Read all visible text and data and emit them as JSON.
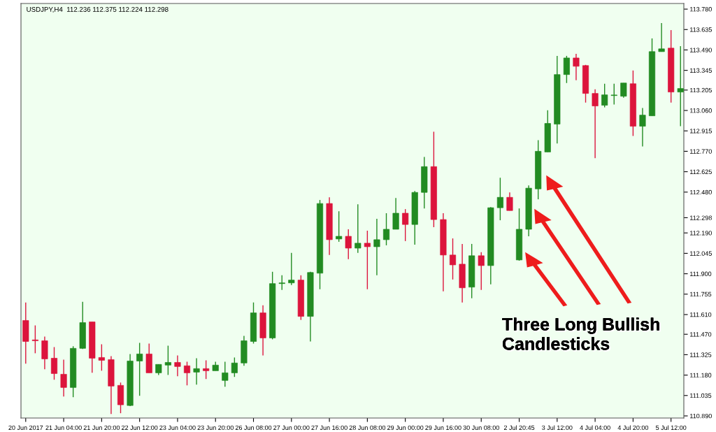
{
  "chart_data": {
    "type": "candlestick",
    "title": "USDJPY,H4  112.236 112.375 112.224 112.298",
    "categories": [
      "20 Jun 2017",
      null,
      null,
      null,
      "21 Jun 04:00",
      null,
      null,
      null,
      "21 Jun 20:00",
      null,
      null,
      null,
      "22 Jun 12:00",
      null,
      null,
      null,
      "23 Jun 04:00",
      null,
      null,
      null,
      "23 Jun 20:00",
      null,
      null,
      null,
      "26 Jun 08:00",
      null,
      null,
      null,
      "27 Jun 00:00",
      null,
      null,
      null,
      "27 Jun 16:00",
      null,
      null,
      null,
      "28 Jun 08:00",
      null,
      null,
      null,
      "29 Jun 00:00",
      null,
      null,
      null,
      "29 Jun 16:00",
      null,
      null,
      null,
      "30 Jun 08:00",
      null,
      null,
      null,
      "2 Jul 20:45",
      null,
      null,
      null,
      "3 Jul 12:00",
      null,
      null,
      null,
      "4 Jul 04:00",
      null,
      null,
      null,
      "4 Jul 20:00",
      null,
      null,
      null,
      "5 Jul 12:00",
      null
    ],
    "ohlc": [
      [
        111.568,
        111.696,
        111.261,
        111.419
      ],
      [
        111.43,
        111.533,
        111.335,
        111.424
      ],
      [
        111.424,
        111.454,
        111.221,
        111.295
      ],
      [
        111.3,
        111.379,
        111.147,
        111.191
      ],
      [
        111.186,
        111.29,
        111.028,
        111.092
      ],
      [
        111.092,
        111.385,
        111.023,
        111.37
      ],
      [
        111.37,
        111.701,
        111.365,
        111.553
      ],
      [
        111.558,
        111.558,
        111.196,
        111.3
      ],
      [
        111.305,
        111.399,
        111.211,
        111.285
      ],
      [
        111.29,
        111.315,
        110.904,
        111.102
      ],
      [
        111.107,
        111.127,
        110.909,
        110.969
      ],
      [
        110.964,
        111.33,
        110.959,
        111.28
      ],
      [
        111.28,
        111.409,
        111.033,
        111.33
      ],
      [
        111.33,
        111.404,
        111.196,
        111.196
      ],
      [
        111.196,
        111.256,
        111.181,
        111.256
      ],
      [
        111.251,
        111.389,
        111.181,
        111.27
      ],
      [
        111.27,
        111.32,
        111.172,
        111.241
      ],
      [
        111.246,
        111.275,
        111.107,
        111.196
      ],
      [
        111.201,
        111.3,
        111.112,
        111.226
      ],
      [
        111.226,
        111.285,
        111.152,
        111.211
      ],
      [
        111.211,
        111.275,
        111.211,
        111.251
      ],
      [
        111.142,
        111.275,
        111.097,
        111.196
      ],
      [
        111.196,
        111.305,
        111.167,
        111.266
      ],
      [
        111.266,
        111.459,
        111.246,
        111.424
      ],
      [
        111.419,
        111.696,
        111.404,
        111.622
      ],
      [
        111.622,
        111.676,
        111.32,
        111.444
      ],
      [
        111.444,
        111.914,
        111.434,
        111.83
      ],
      [
        111.83,
        111.889,
        111.785,
        111.835
      ],
      [
        111.835,
        112.048,
        111.82,
        111.855
      ],
      [
        111.855,
        111.889,
        111.572,
        111.597
      ],
      [
        111.597,
        111.914,
        111.419,
        111.909
      ],
      [
        111.904,
        112.424,
        111.79,
        112.399
      ],
      [
        112.399,
        112.443,
        112.033,
        112.142
      ],
      [
        112.147,
        112.344,
        112.127,
        112.166
      ],
      [
        112.166,
        112.216,
        112.003,
        112.082
      ],
      [
        112.082,
        112.394,
        112.048,
        112.117
      ],
      [
        112.117,
        112.206,
        111.79,
        112.092
      ],
      [
        112.092,
        112.29,
        111.889,
        112.142
      ],
      [
        112.142,
        112.33,
        112.102,
        112.216
      ],
      [
        112.216,
        112.438,
        112.216,
        112.33
      ],
      [
        112.33,
        112.359,
        112.132,
        112.25
      ],
      [
        112.25,
        112.488,
        112.107,
        112.478
      ],
      [
        112.478,
        112.73,
        112.364,
        112.661
      ],
      [
        112.661,
        112.909,
        112.231,
        112.285
      ],
      [
        112.285,
        112.33,
        111.775,
        112.033
      ],
      [
        112.033,
        112.151,
        111.859,
        111.963
      ],
      [
        111.968,
        112.112,
        111.696,
        111.8
      ],
      [
        111.805,
        112.112,
        111.726,
        112.028
      ],
      [
        112.028,
        112.053,
        111.785,
        111.958
      ],
      [
        111.958,
        112.374,
        111.825,
        112.369
      ],
      [
        112.369,
        112.582,
        112.28,
        112.443
      ],
      [
        112.443,
        112.478,
        112.349,
        112.349
      ],
      [
        111.998,
        112.364,
        111.993,
        112.216
      ],
      [
        112.216,
        112.528,
        112.166,
        112.508
      ],
      [
        112.503,
        112.849,
        112.429,
        112.77
      ],
      [
        112.765,
        113.062,
        112.765,
        112.968
      ],
      [
        112.963,
        113.448,
        112.825,
        113.315
      ],
      [
        113.315,
        113.448,
        113.255,
        113.433
      ],
      [
        113.433,
        113.463,
        113.275,
        113.374
      ],
      [
        113.379,
        113.384,
        113.116,
        113.181
      ],
      [
        113.181,
        113.211,
        112.721,
        113.092
      ],
      [
        113.097,
        113.25,
        113.082,
        113.171
      ],
      [
        113.166,
        113.25,
        113.102,
        113.17
      ],
      [
        113.161,
        113.255,
        113.151,
        113.255
      ],
      [
        113.25,
        113.344,
        112.879,
        112.948
      ],
      [
        112.948,
        113.077,
        112.805,
        113.027
      ],
      [
        113.022,
        113.572,
        113.022,
        113.478
      ],
      [
        113.478,
        113.681,
        113.478,
        113.498
      ],
      [
        113.503,
        113.631,
        113.116,
        113.191
      ],
      [
        113.191,
        113.517,
        112.948,
        113.216
      ]
    ],
    "colors": [
      "#dc143c",
      "#dc143c",
      "#dc143c",
      "#dc143c",
      "#dc143c",
      "#228b22",
      "#228b22",
      "#dc143c",
      "#dc143c",
      "#dc143c",
      "#dc143c",
      "#228b22",
      "#228b22",
      "#dc143c",
      "#228b22",
      "#228b22",
      "#dc143c",
      "#dc143c",
      "#228b22",
      "#dc143c",
      "#228b22",
      "#228b22",
      "#228b22",
      "#228b22",
      "#228b22",
      "#dc143c",
      "#228b22",
      "#228b22",
      "#228b22",
      "#dc143c",
      "#228b22",
      "#228b22",
      "#dc143c",
      "#228b22",
      "#dc143c",
      "#228b22",
      "#dc143c",
      "#228b22",
      "#228b22",
      "#228b22",
      "#dc143c",
      "#228b22",
      "#228b22",
      "#dc143c",
      "#dc143c",
      "#dc143c",
      "#dc143c",
      "#228b22",
      "#dc143c",
      "#228b22",
      "#228b22",
      "#dc143c",
      "#228b22",
      "#228b22",
      "#228b22",
      "#228b22",
      "#228b22",
      "#228b22",
      "#dc143c",
      "#dc143c",
      "#dc143c",
      "#228b22",
      "#228b22",
      "#228b22",
      "#dc143c",
      "#228b22",
      "#228b22",
      "#228b22",
      "#dc143c",
      "#228b22"
    ],
    "ylim": [
      110.875,
      113.82
    ],
    "yticks": [
      {
        "value": 110.89,
        "label": "110.890"
      },
      {
        "value": 111.035,
        "label": "111.035"
      },
      {
        "value": 111.18,
        "label": "111.180"
      },
      {
        "value": 111.325,
        "label": "111.325"
      },
      {
        "value": 111.47,
        "label": "111.470"
      },
      {
        "value": 111.61,
        "label": "111.610"
      },
      {
        "value": 111.755,
        "label": "111.755"
      },
      {
        "value": 111.9,
        "label": "111.900"
      },
      {
        "value": 112.045,
        "label": "112.045"
      },
      {
        "value": 112.19,
        "label": "112.190"
      },
      {
        "value": 112.298,
        "label": "112.298"
      },
      {
        "value": 112.48,
        "label": "112.480"
      },
      {
        "value": 112.625,
        "label": "112.625"
      },
      {
        "value": 112.77,
        "label": "112.770"
      },
      {
        "value": 112.915,
        "label": "112.915"
      },
      {
        "value": 113.06,
        "label": "113.060"
      },
      {
        "value": 113.205,
        "label": "113.205"
      },
      {
        "value": 113.345,
        "label": "113.345"
      },
      {
        "value": 113.49,
        "label": "113.490"
      },
      {
        "value": 113.635,
        "label": "113.635"
      },
      {
        "value": 113.78,
        "label": "113.780"
      }
    ],
    "annotations": [
      "Three Long Bullish Candlesticks"
    ],
    "grid": false,
    "legend": false
  }
}
